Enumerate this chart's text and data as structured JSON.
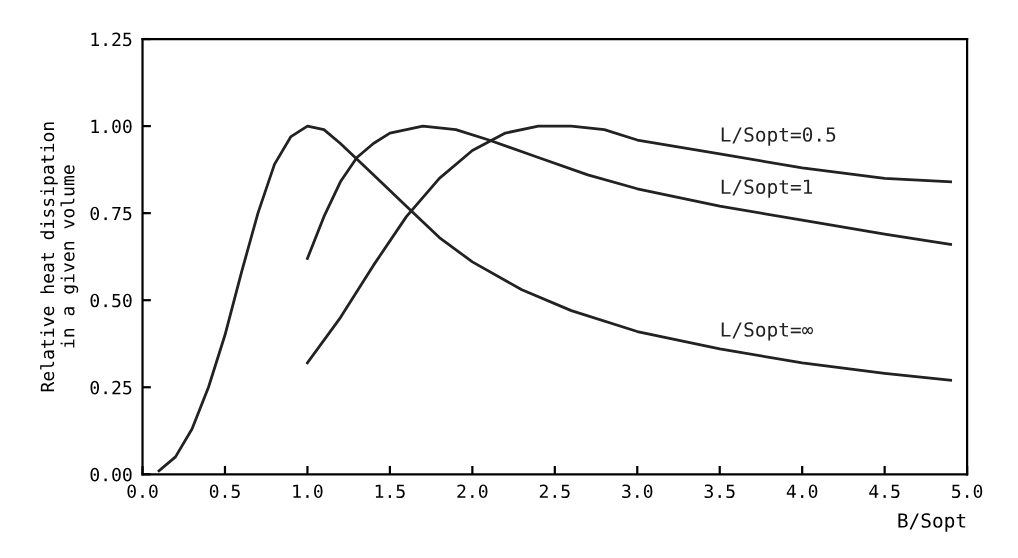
{
  "chart_data": {
    "type": "line",
    "xlabel": "B/Sopt",
    "ylabel": "Relative heat dissipation\nin a given volume",
    "xlim": [
      0,
      5
    ],
    "ylim": [
      0,
      1.25
    ],
    "xticks": [
      {
        "value": 0,
        "label": "0.0"
      },
      0.5,
      {
        "value": 1,
        "label": "1.0"
      },
      1.5,
      {
        "value": 2,
        "label": "2.0"
      },
      2.5,
      {
        "value": 3,
        "label": "3.0"
      },
      3.5,
      {
        "value": 4,
        "label": "4.0"
      },
      4.5,
      {
        "value": 5,
        "label": "5.0"
      }
    ],
    "yticks": [
      {
        "value": 0,
        "label": "0.00"
      },
      0.25,
      {
        "value": 0.5,
        "label": "0.50"
      },
      0.75,
      {
        "value": 1,
        "label": "1.00"
      },
      1.25
    ],
    "grid": false,
    "legend": false,
    "marker": "none",
    "line_style": "solid",
    "series": [
      {
        "name": "L/Sopt=0.5",
        "color": "#222222",
        "x": [
          1.0,
          1.2,
          1.4,
          1.6,
          1.8,
          2.0,
          2.2,
          2.4,
          2.6,
          2.8,
          3.0,
          3.5,
          4.0,
          4.5,
          4.9
        ],
        "values": [
          0.32,
          0.45,
          0.6,
          0.74,
          0.85,
          0.93,
          0.98,
          1.0,
          1.0,
          0.99,
          0.96,
          0.92,
          0.88,
          0.85,
          0.84
        ]
      },
      {
        "name": "L/Sopt=1",
        "color": "#222222",
        "x": [
          1.0,
          1.1,
          1.2,
          1.3,
          1.4,
          1.5,
          1.7,
          1.9,
          2.1,
          2.4,
          2.7,
          3.0,
          3.5,
          4.0,
          4.5,
          4.9
        ],
        "values": [
          0.62,
          0.74,
          0.84,
          0.91,
          0.95,
          0.98,
          1.0,
          0.99,
          0.96,
          0.91,
          0.86,
          0.82,
          0.77,
          0.73,
          0.69,
          0.66
        ]
      },
      {
        "name": "L/Sopt=∞",
        "color": "#222222",
        "x": [
          0.1,
          0.2,
          0.3,
          0.4,
          0.5,
          0.6,
          0.7,
          0.8,
          0.9,
          1.0,
          1.1,
          1.2,
          1.4,
          1.6,
          1.8,
          2.0,
          2.3,
          2.6,
          3.0,
          3.5,
          4.0,
          4.5,
          4.9
        ],
        "values": [
          0.01,
          0.05,
          0.13,
          0.25,
          0.4,
          0.58,
          0.75,
          0.89,
          0.97,
          1.0,
          0.99,
          0.95,
          0.86,
          0.77,
          0.68,
          0.61,
          0.53,
          0.47,
          0.41,
          0.36,
          0.32,
          0.29,
          0.27
        ]
      }
    ]
  }
}
